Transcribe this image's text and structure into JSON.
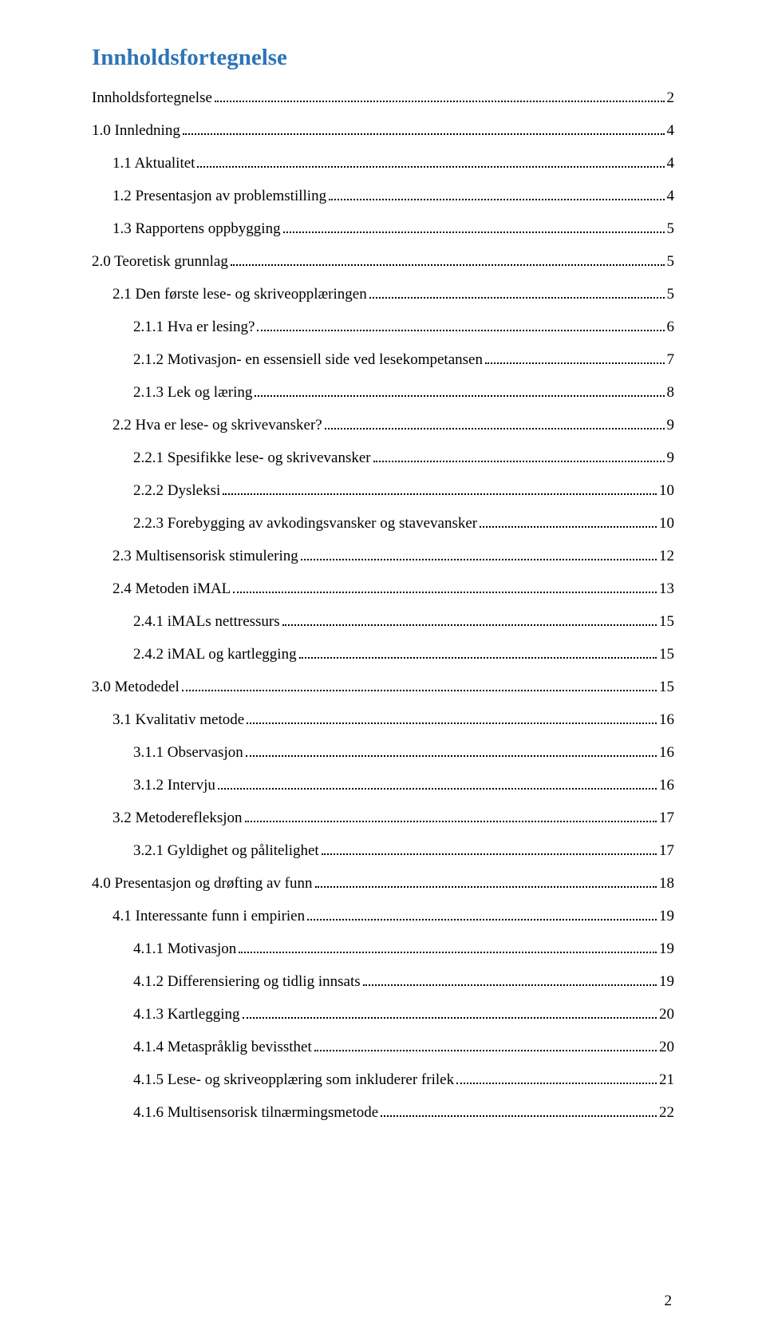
{
  "title": "Innholdsfortegnelse",
  "title_color": "#2e74b5",
  "text_color": "#000000",
  "background_color": "#ffffff",
  "font_family": "Times New Roman",
  "title_fontsize": 29,
  "body_fontsize": 19,
  "page_number": "2",
  "entries": [
    {
      "indent": 0,
      "label": "Innholdsfortegnelse",
      "page": "2"
    },
    {
      "indent": 0,
      "label": "1.0 Innledning",
      "page": "4"
    },
    {
      "indent": 1,
      "label": "1.1 Aktualitet",
      "page": "4"
    },
    {
      "indent": 1,
      "label": "1.2 Presentasjon av problemstilling",
      "page": "4"
    },
    {
      "indent": 1,
      "label": "1.3 Rapportens oppbygging",
      "page": "5"
    },
    {
      "indent": 0,
      "label": "2.0 Teoretisk grunnlag",
      "page": "5"
    },
    {
      "indent": 1,
      "label": "2.1 Den første lese- og skriveopplæringen",
      "page": "5"
    },
    {
      "indent": 2,
      "label": "2.1.1 Hva er lesing?",
      "page": "6"
    },
    {
      "indent": 2,
      "label": "2.1.2 Motivasjon- en essensiell side ved lesekompetansen",
      "page": "7"
    },
    {
      "indent": 2,
      "label": "2.1.3 Lek og læring",
      "page": "8"
    },
    {
      "indent": 1,
      "label": "2.2 Hva er lese- og skrivevansker?",
      "page": "9"
    },
    {
      "indent": 2,
      "label": "2.2.1 Spesifikke lese- og skrivevansker",
      "page": "9"
    },
    {
      "indent": 2,
      "label": "2.2.2 Dysleksi",
      "page": "10"
    },
    {
      "indent": 2,
      "label": "2.2.3 Forebygging av avkodingsvansker og stavevansker",
      "page": "10"
    },
    {
      "indent": 1,
      "label": "2.3 Multisensorisk stimulering",
      "page": "12"
    },
    {
      "indent": 1,
      "label": "2.4 Metoden iMAL",
      "page": "13"
    },
    {
      "indent": 2,
      "label": "2.4.1 iMALs nettressurs",
      "page": "15"
    },
    {
      "indent": 2,
      "label": "2.4.2 iMAL og kartlegging",
      "page": "15"
    },
    {
      "indent": 0,
      "label": "3.0 Metodedel",
      "page": "15"
    },
    {
      "indent": 1,
      "label": "3.1 Kvalitativ metode",
      "page": "16"
    },
    {
      "indent": 2,
      "label": "3.1.1 Observasjon",
      "page": "16"
    },
    {
      "indent": 2,
      "label": "3.1.2 Intervju",
      "page": "16"
    },
    {
      "indent": 1,
      "label": "3.2  Metoderefleksjon",
      "page": "17"
    },
    {
      "indent": 2,
      "label": "3.2.1 Gyldighet og pålitelighet",
      "page": "17"
    },
    {
      "indent": 0,
      "label": "4.0 Presentasjon og drøfting av funn",
      "page": "18"
    },
    {
      "indent": 1,
      "label": "4.1 Interessante funn i empirien",
      "page": "19"
    },
    {
      "indent": 2,
      "label": "4.1.1 Motivasjon",
      "page": "19"
    },
    {
      "indent": 2,
      "label": "4.1.2 Differensiering og tidlig innsats",
      "page": "19"
    },
    {
      "indent": 2,
      "label": "4.1.3 Kartlegging",
      "page": "20"
    },
    {
      "indent": 2,
      "label": "4.1.4 Metaspråklig bevissthet",
      "page": "20"
    },
    {
      "indent": 2,
      "label": "4.1.5 Lese- og skriveopplæring som inkluderer frilek",
      "page": "21"
    },
    {
      "indent": 2,
      "label": "4.1.6 Multisensorisk tilnærmingsmetode",
      "page": "22"
    }
  ]
}
